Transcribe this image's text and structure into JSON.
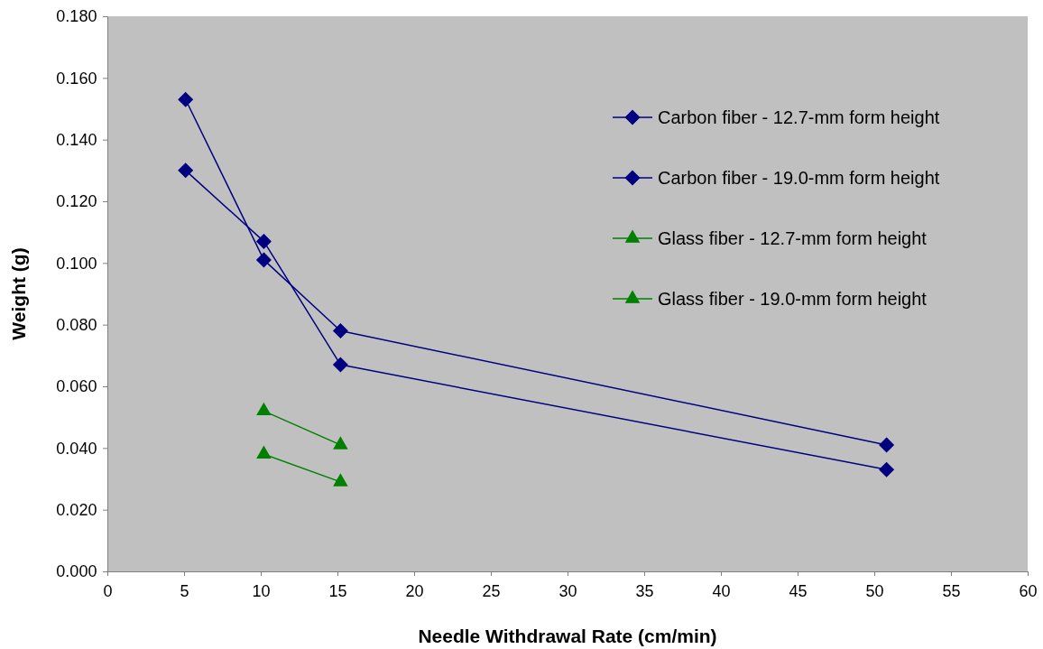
{
  "chart_data": {
    "type": "line",
    "xlabel": "Needle Withdrawal Rate (cm/min)",
    "ylabel": "Weight (g)",
    "xlim": [
      0,
      60
    ],
    "xticks": [
      0,
      5,
      10,
      15,
      20,
      25,
      30,
      35,
      40,
      45,
      50,
      55,
      60
    ],
    "ylim": [
      0,
      0.18
    ],
    "yticks": [
      {
        "value": 0,
        "label": "0.000"
      },
      {
        "value": 0.02,
        "label": "0.020"
      },
      {
        "value": 0.04,
        "label": "0.040"
      },
      {
        "value": 0.06,
        "label": "0.060"
      },
      {
        "value": 0.08,
        "label": "0.080"
      },
      {
        "value": 0.1,
        "label": "0.100"
      },
      {
        "value": 0.12,
        "label": "0.120"
      },
      {
        "value": 0.14,
        "label": "0.140"
      },
      {
        "value": 0.16,
        "label": "0.160"
      },
      {
        "value": 0.18,
        "label": "0.180"
      }
    ],
    "grid": false,
    "legend": "top right",
    "line_style": "solid",
    "series": [
      {
        "name": "Carbon fiber - 12.7-mm form height",
        "color": "#000080",
        "marker": "diamond",
        "x": [
          5.1,
          10.2,
          15.2,
          50.8
        ],
        "values": [
          0.13,
          0.107,
          0.067,
          0.033
        ]
      },
      {
        "name": "Carbon fiber - 19.0-mm form height",
        "color": "#000080",
        "marker": "diamond",
        "x": [
          5.1,
          10.2,
          15.2,
          50.8
        ],
        "values": [
          0.153,
          0.101,
          0.078,
          0.041
        ]
      },
      {
        "name": "Glass fiber - 12.7-mm form height",
        "color": "#008000",
        "marker": "triangle",
        "x": [
          10.2,
          15.2
        ],
        "values": [
          0.052,
          0.041
        ]
      },
      {
        "name": "Glass fiber - 19.0-mm form height",
        "color": "#008000",
        "marker": "triangle",
        "x": [
          10.2,
          15.2
        ],
        "values": [
          0.038,
          0.029
        ]
      }
    ]
  }
}
